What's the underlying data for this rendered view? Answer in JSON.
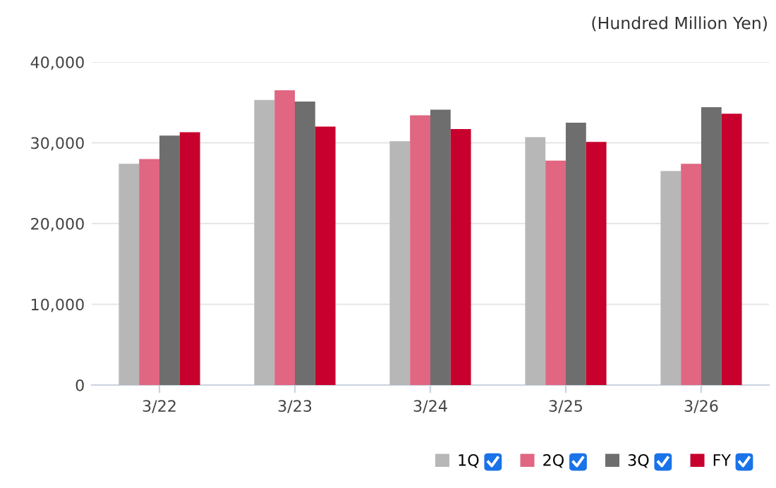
{
  "chart_data": {
    "type": "bar",
    "annotations": [
      "(Hundred Million Yen)"
    ],
    "categories": [
      "3/22",
      "3/23",
      "3/24",
      "3/25",
      "3/26"
    ],
    "series": [
      {
        "name": "1Q",
        "color": "#b7b7b7",
        "values": [
          27400,
          35300,
          30200,
          30700,
          26500
        ]
      },
      {
        "name": "2Q",
        "color": "#e06681",
        "values": [
          28000,
          36500,
          33400,
          27800,
          27400
        ]
      },
      {
        "name": "3Q",
        "color": "#6e6e6e",
        "values": [
          30900,
          35100,
          34100,
          32500,
          34400
        ]
      },
      {
        "name": "FY",
        "color": "#c8002d",
        "values": [
          31300,
          32000,
          31700,
          30100,
          33600
        ]
      }
    ],
    "ylim": [
      0,
      40000
    ],
    "yticks": [
      {
        "value": 0,
        "label": "0"
      },
      {
        "value": 10000,
        "label": "10,000"
      },
      {
        "value": 20000,
        "label": "20,000"
      },
      {
        "value": 30000,
        "label": "30,000"
      },
      {
        "value": 40000,
        "label": "40,000"
      }
    ],
    "grid": "y",
    "legend": "bottom right"
  }
}
